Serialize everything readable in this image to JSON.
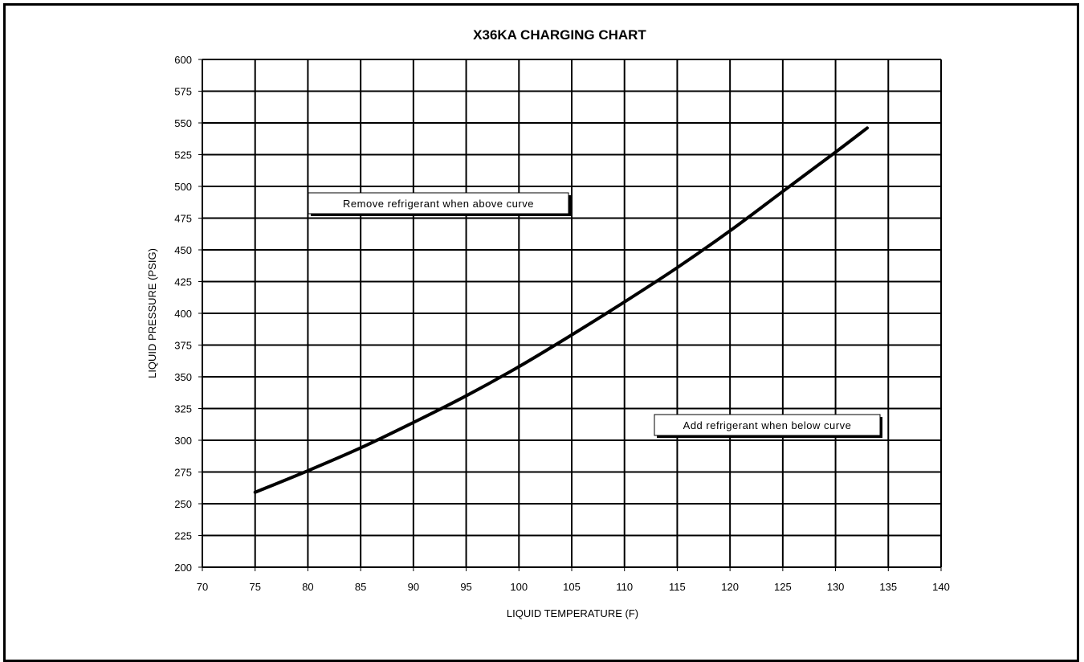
{
  "chart_data": {
    "type": "line",
    "title": "X36KA CHARGING CHART",
    "xlabel": "LIQUID TEMPERATURE (F)",
    "ylabel": "LIQUID PRESSURE (PSIG)",
    "xlim": [
      70,
      140
    ],
    "ylim": [
      200,
      600
    ],
    "xticks": [
      70,
      75,
      80,
      85,
      90,
      95,
      100,
      105,
      110,
      115,
      120,
      125,
      130,
      135,
      140
    ],
    "yticks": [
      200,
      225,
      250,
      275,
      300,
      325,
      350,
      375,
      400,
      425,
      450,
      475,
      500,
      525,
      550,
      575,
      600
    ],
    "grid": true,
    "legend": "none",
    "line_color": "#000000",
    "series": [
      {
        "x": [
          75,
          80,
          85,
          90,
          95,
          100,
          105,
          110,
          115,
          120,
          125,
          130,
          133
        ],
        "values": [
          259,
          276,
          294,
          314,
          335,
          358,
          383,
          409,
          436,
          465,
          496,
          527,
          546
        ]
      }
    ],
    "annotations": [
      {
        "text": "Remove refrigerant when above curve"
      },
      {
        "text": "Add refrigerant when below curve"
      }
    ]
  }
}
